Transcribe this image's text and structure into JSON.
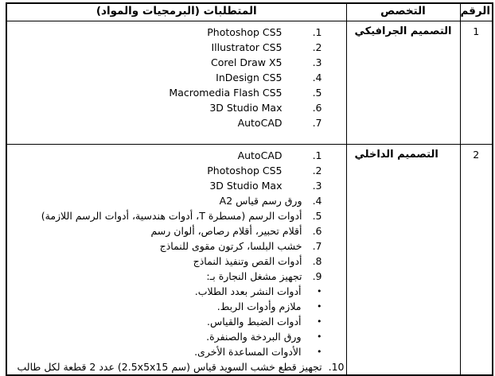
{
  "document": {
    "headers": {
      "number": "الرقم",
      "specialization": "التخصص",
      "requirements": "المتطلبات (البرمجيات والمواد)"
    },
    "rows": [
      {
        "number": "1",
        "specialization": "التصميم الجرافيكي",
        "items": [
          {
            "type": "numlat",
            "marker": "1.",
            "text": "Photoshop CS5"
          },
          {
            "type": "numlat",
            "marker": "2.",
            "text": "Illustrator CS5"
          },
          {
            "type": "numlat",
            "marker": "3.",
            "text": "Corel Draw X5"
          },
          {
            "type": "numlat",
            "marker": "4.",
            "text": "InDesign CS5"
          },
          {
            "type": "numlat",
            "marker": "5.",
            "text": "Macromedia Flash CS5"
          },
          {
            "type": "numlat",
            "marker": "6.",
            "text": "3D Studio Max"
          },
          {
            "type": "numlat",
            "marker": "7.",
            "text": "AutoCAD"
          }
        ]
      },
      {
        "number": "2",
        "specialization": "التصميم الداخلي",
        "items": [
          {
            "type": "numlat",
            "marker": "1.",
            "text": "AutoCAD"
          },
          {
            "type": "numlat",
            "marker": "2.",
            "text": "Photoshop CS5"
          },
          {
            "type": "numlat",
            "marker": "3.",
            "text": "3D Studio Max"
          },
          {
            "type": "num",
            "marker": "4.",
            "text": "ورق رسم قياس A2"
          },
          {
            "type": "num",
            "marker": "5.",
            "text": "أدوات الرسم (مسطرة T، أدوات هندسية، أدوات الرسم اللازمة)"
          },
          {
            "type": "num",
            "marker": "6.",
            "text": "أقلام تحبير، أقلام رصاص، ألوان رسم"
          },
          {
            "type": "num",
            "marker": "7.",
            "text": "خشب البلسا، كرتون مقوى للنماذج"
          },
          {
            "type": "num",
            "marker": "8.",
            "text": "أدوات القص وتنفيذ النماذج"
          },
          {
            "type": "num",
            "marker": "9.",
            "text": "تجهيز مشغل النجارة بـ:"
          },
          {
            "type": "bullet",
            "marker": "•",
            "text": "أدوات النشر بعدد الطلاب."
          },
          {
            "type": "bullet",
            "marker": "•",
            "text": "ملازم وأدوات الربط."
          },
          {
            "type": "bullet",
            "marker": "•",
            "text": "أدوات الضبط والقياس."
          },
          {
            "type": "bullet",
            "marker": "•",
            "text": "ورق البردخة والصنفرة."
          },
          {
            "type": "bullet",
            "marker": "•",
            "text": "الأدوات المساعدة الأخرى."
          },
          {
            "type": "full",
            "marker": "10.",
            "text": "تجهيز قطع خشب السويد قياس ‪(2.5x5x15 سم)‬ عدد 2 قطعة لكل طالب"
          }
        ]
      }
    ]
  }
}
